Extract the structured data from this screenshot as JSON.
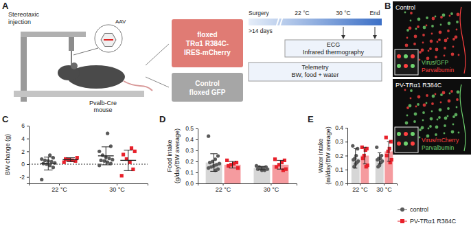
{
  "diagram": {
    "panel_labels": [
      "A",
      "B"
    ],
    "injection": {
      "label": [
        "Stereotaxic",
        "injection"
      ],
      "vector": "AAV",
      "mouse": [
        "Pvalb-Cre",
        "mouse"
      ]
    },
    "constructs": [
      {
        "lines": [
          "floxed",
          "TRα1 R384C-",
          "IRES-mCherry"
        ],
        "color": "#e07b74"
      },
      {
        "lines": [
          "Control",
          "floxed GFP"
        ],
        "color": "#a6a6a6"
      }
    ],
    "timeline": {
      "surgery": "Surgery",
      "wait": ">14 days",
      "phases": [
        "22 °C",
        "30 °C"
      ],
      "end": "End"
    },
    "measurements": [
      [
        "ECG",
        "Infrared thermography"
      ],
      [
        "Telemetry",
        "BW, food + water"
      ]
    ],
    "images": [
      {
        "title": "Control",
        "labels": [
          {
            "text": "Virus/GFP",
            "color": "#6fd36f"
          },
          {
            "text": "Parvalbumin",
            "color": "#ff4040"
          }
        ]
      },
      {
        "title": "PV-TRα1 R384C",
        "labels": [
          {
            "text": "Virus/mCherry",
            "color": "#ff4040"
          },
          {
            "text": "Parvalbumin",
            "color": "#6fd36f"
          }
        ]
      }
    ]
  },
  "chart_data": [
    {
      "type": "dot",
      "title": "C",
      "ylabel": [
        "BW change (g)"
      ],
      "categories": [
        "22 °C",
        "30 °C"
      ],
      "ylim": [
        -3,
        6
      ],
      "yticks": [
        -2,
        0,
        2,
        4,
        6
      ],
      "hline": {
        "value": 0,
        "line_style": "dotted"
      },
      "series": [
        {
          "name": "control",
          "color": "#5a5a5a",
          "marker": "circle",
          "values": [
            0.1,
            1.3
          ],
          "error": [
            1.0,
            1.4
          ],
          "points": [
            [
              -2.4,
              -0.5,
              -0.2,
              0,
              0.1,
              0.2,
              0.4,
              0.5,
              0.6,
              0.8,
              1.0,
              1.4
            ],
            [
              -0.2,
              0.1,
              0.3,
              0.5,
              0.6,
              0.7,
              0.9,
              1.1,
              1.4,
              2.0,
              2.8,
              4.8
            ]
          ]
        },
        {
          "name": "PV-TRα1 R384C",
          "color": "#e8202a",
          "marker": "square",
          "values": [
            0.7,
            0.6
          ],
          "error": [
            0.3,
            1.6
          ],
          "points": [
            [
              0.3,
              0.5,
              0.6,
              0.7,
              0.8,
              1.0
            ],
            [
              -1.8,
              -0.8,
              0.3,
              0.8,
              1.5,
              2.0,
              2.5
            ]
          ]
        }
      ]
    },
    {
      "type": "bar",
      "title": "D",
      "ylabel": [
        "Food intake",
        "(g/day/BW average)"
      ],
      "categories": [
        "22 °C",
        "30 °C"
      ],
      "ylim": [
        0,
        0.5
      ],
      "yticks": [
        {
          "value": 0,
          "label": "0.0"
        },
        0.1,
        0.2,
        0.3,
        0.4,
        0.5
      ],
      "series": [
        {
          "name": "control",
          "color": "#5a5a5a",
          "marker": "circle",
          "values": [
            0.19,
            0.14
          ],
          "error": [
            0.08,
            0.015
          ],
          "points": [
            [
              0.43,
              0.25,
              0.22,
              0.2,
              0.19,
              0.18,
              0.17,
              0.16,
              0.15,
              0.14,
              0.13,
              0.12
            ],
            [
              0.16,
              0.15,
              0.14,
              0.14,
              0.13,
              0.13,
              0.12,
              0.12,
              0.15
            ]
          ]
        },
        {
          "name": "PV-TRα1 R384C",
          "color": "#e8202a",
          "marker": "square",
          "values": [
            0.17,
            0.17
          ],
          "error": [
            0.03,
            0.04
          ],
          "points": [
            [
              0.21,
              0.19,
              0.18,
              0.17,
              0.16,
              0.14
            ],
            [
              0.22,
              0.21,
              0.19,
              0.17,
              0.15,
              0.13,
              0.12
            ]
          ]
        }
      ]
    },
    {
      "type": "bar",
      "title": "E",
      "ylabel": [
        "Water intake",
        "(ml/day/BW average)"
      ],
      "categories": [
        "22 °C",
        "30 °C"
      ],
      "ylim": [
        0,
        0.4
      ],
      "yticks": [
        {
          "value": 0,
          "label": "0.0"
        },
        0.1,
        0.2,
        0.3,
        0.4
      ],
      "legend": "right",
      "series": [
        {
          "name": "control",
          "color": "#5a5a5a",
          "marker": "circle",
          "values": [
            0.18,
            0.18
          ],
          "error": [
            0.07,
            0.04
          ],
          "points": [
            [
              0.27,
              0.25,
              0.2,
              0.18,
              0.17,
              0.16,
              0.15,
              0.14,
              0.12
            ],
            [
              0.26,
              0.2,
              0.18,
              0.18,
              0.17,
              0.16,
              0.15,
              0.13,
              0.12
            ]
          ]
        },
        {
          "name": "PV-TRα1 R384C",
          "color": "#e8202a",
          "marker": "square",
          "values": [
            0.2,
            0.23
          ],
          "error": [
            0.06,
            0.07
          ],
          "points": [
            [
              0.26,
              0.25,
              0.24,
              0.2,
              0.18,
              0.13,
              0.12
            ],
            [
              0.33,
              0.3,
              0.25,
              0.23,
              0.2,
              0.17,
              0.15
            ]
          ]
        }
      ]
    }
  ]
}
